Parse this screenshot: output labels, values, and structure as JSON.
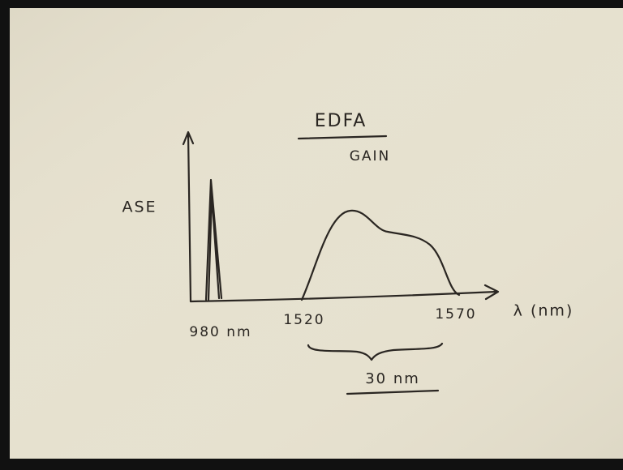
{
  "diagram": {
    "title": "EDFA",
    "subtitle": "GAIN",
    "y_label": "ASE",
    "x_label": "λ (nm)",
    "x_marks": [
      "980 nm",
      "1520",
      "1570"
    ],
    "brace_label": "30 nm"
  }
}
